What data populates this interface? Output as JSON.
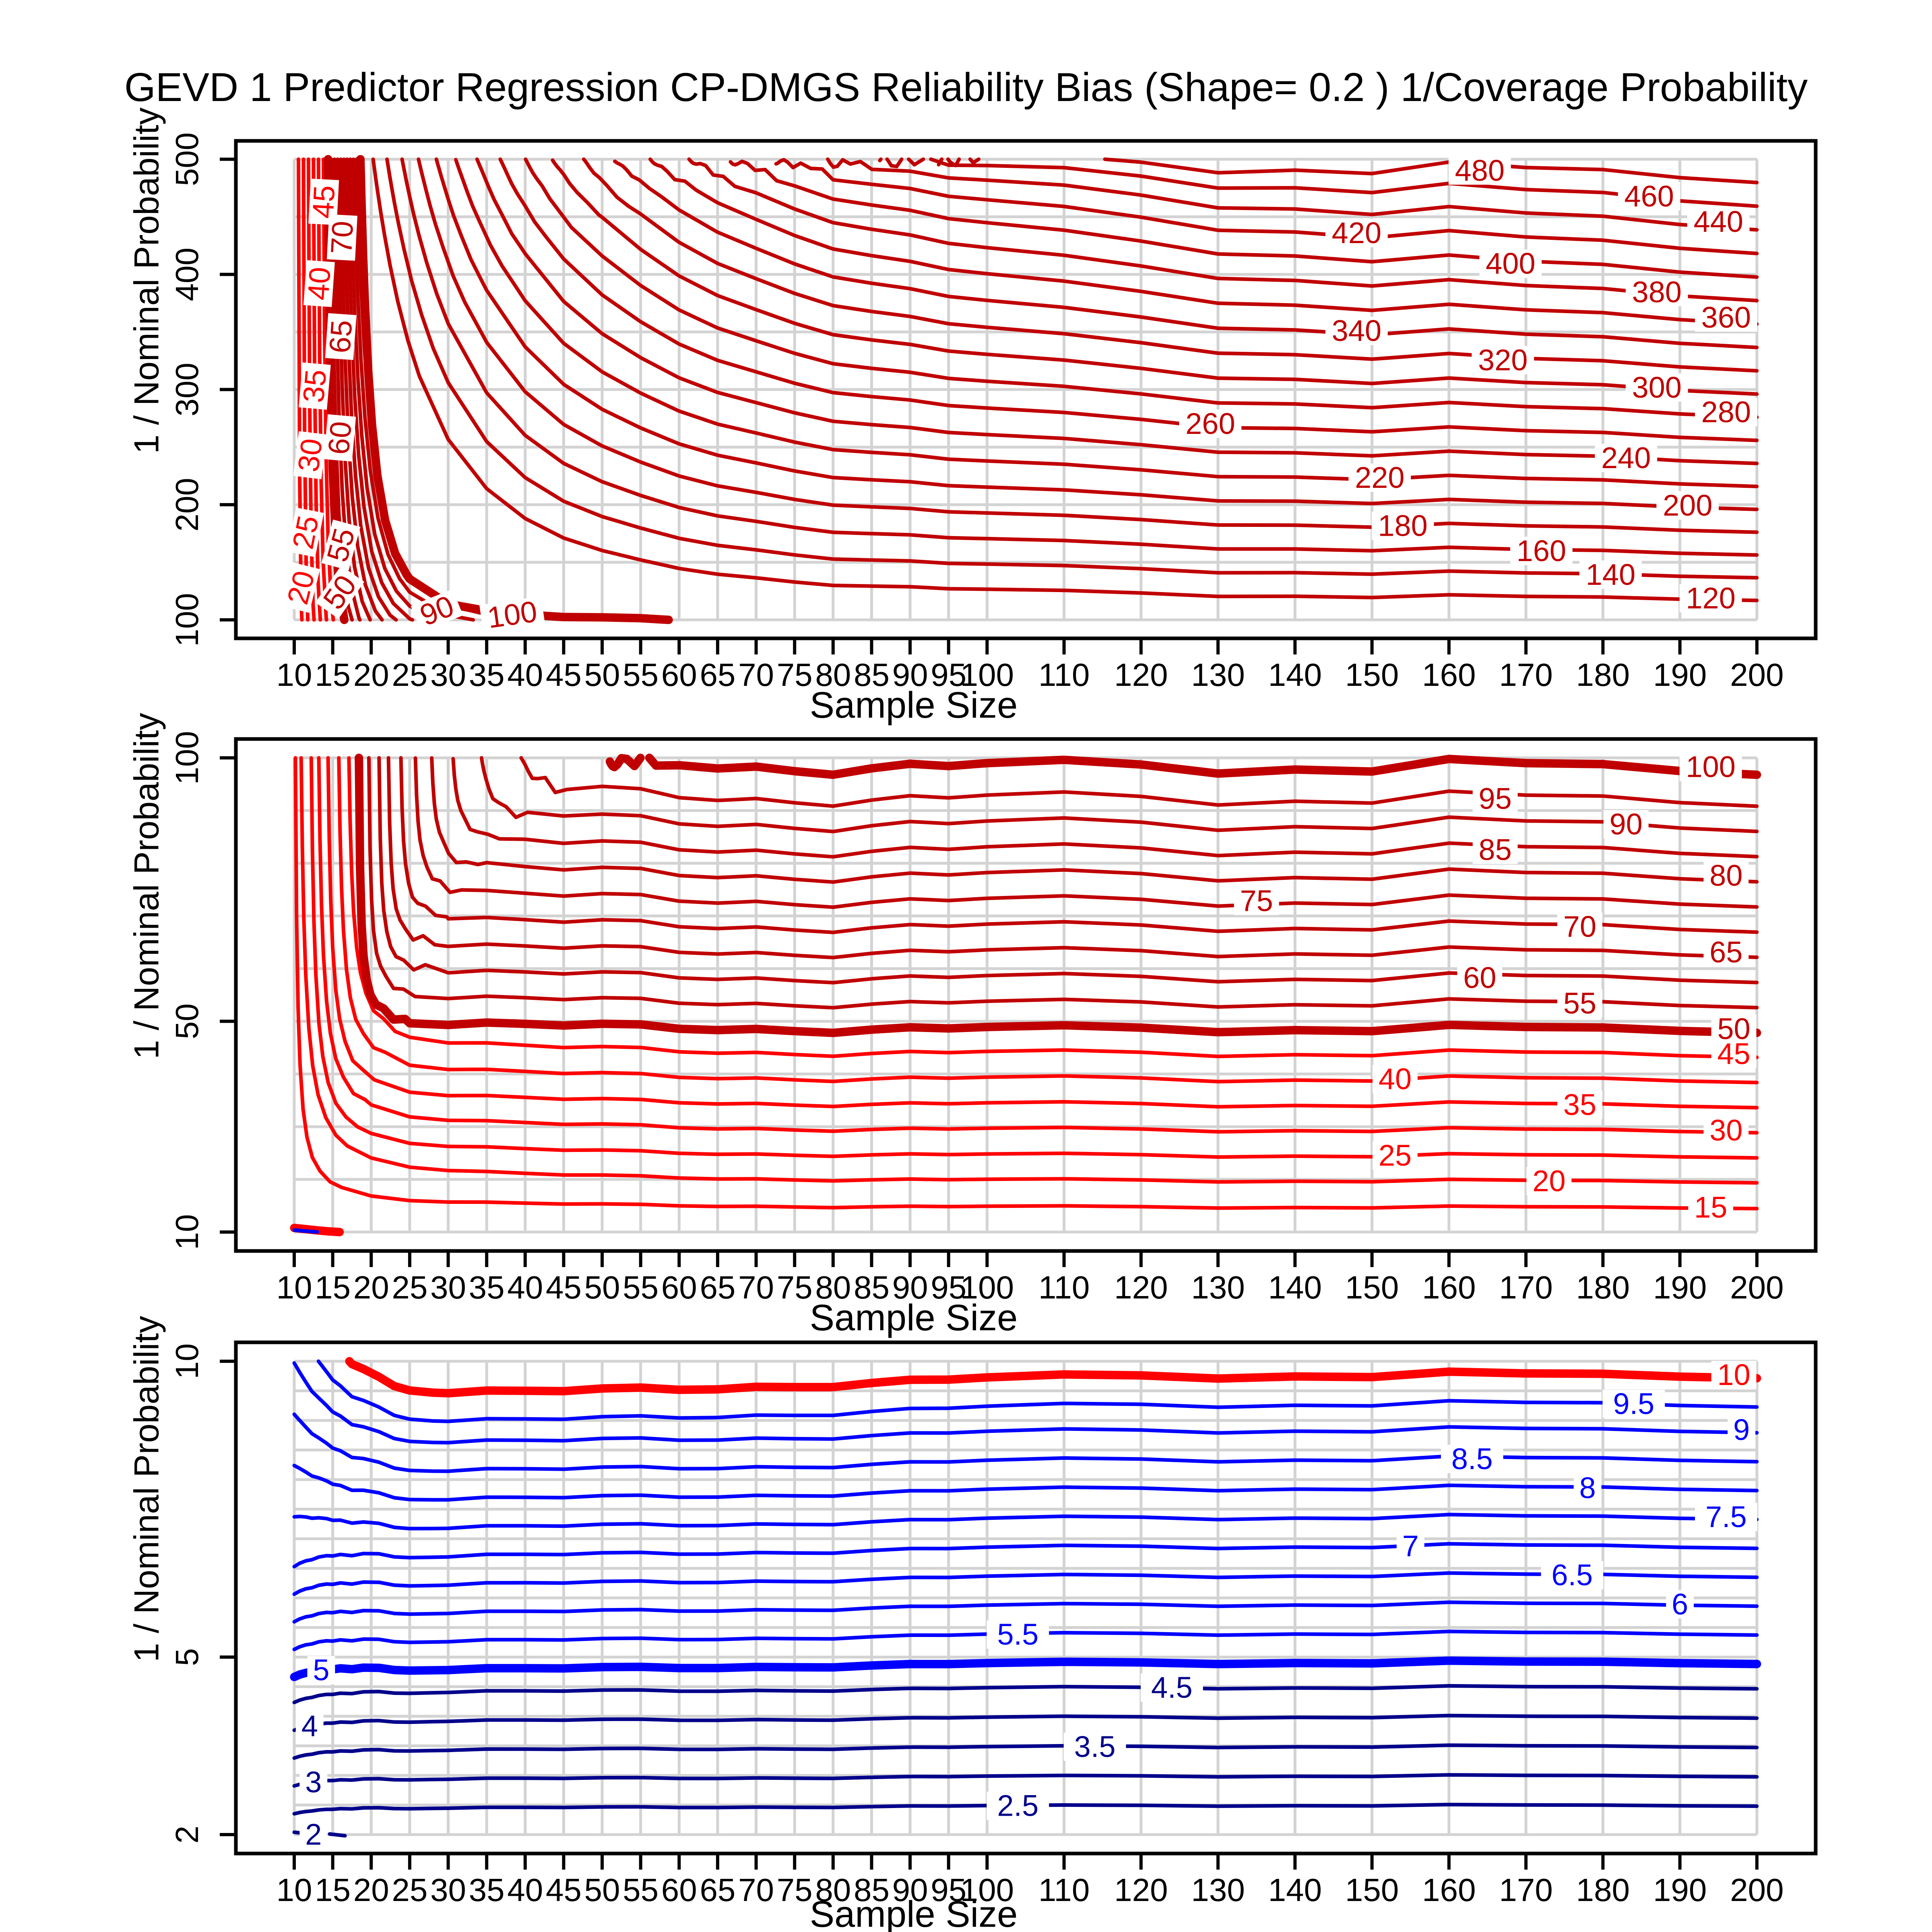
{
  "title": "GEVD 1 Predictor Regression CP-DMGS Reliability Bias (Shape= 0.2 ) 1/Coverage Probability",
  "axes": {
    "x_label": "Sample Size",
    "y_label": "1 / Nominal Probability"
  },
  "colors": {
    "bright_red": "#FF0000",
    "dark_red": "#C00000",
    "bright_blue": "#0000FF",
    "navy": "#00008B",
    "grid": "#D3D3D3",
    "axis": "#000000"
  },
  "chart_data": {
    "type": "contour",
    "x_axis": {
      "label": "Sample Size",
      "min": 10,
      "max": 200,
      "ticks": [
        10,
        15,
        20,
        25,
        30,
        35,
        40,
        45,
        50,
        55,
        60,
        65,
        70,
        75,
        80,
        85,
        90,
        95,
        100,
        110,
        120,
        130,
        140,
        150,
        160,
        170,
        180,
        190,
        200
      ]
    },
    "panels": [
      {
        "name": "top",
        "y_label": "1 / Nominal Probability",
        "y_min": 100,
        "y_max": 500,
        "y_ticks": [
          100,
          200,
          300,
          400,
          500
        ],
        "y_grid_step": 50,
        "family": "invsq",
        "levels": [
          {
            "v": 20,
            "col": "R",
            "th": false,
            "xt": 10.55,
            "r": 0.1,
            "labels": [
              {
                "y": 128,
                "rot": -76
              }
            ]
          },
          {
            "v": 25,
            "col": "R",
            "th": false,
            "xt": 11.2,
            "r": 0.1,
            "labels": [
              {
                "y": 176,
                "rot": -79
              }
            ]
          },
          {
            "v": 30,
            "col": "R",
            "th": false,
            "xt": 11.85,
            "r": 0.1,
            "labels": [
              {
                "y": 243,
                "rot": -83
              }
            ]
          },
          {
            "v": 35,
            "col": "R",
            "th": false,
            "xt": 12.5,
            "r": 0.1,
            "labels": [
              {
                "y": 303,
                "rot": -85
              }
            ]
          },
          {
            "v": 40,
            "col": "R",
            "th": false,
            "xt": 13.15,
            "r": 0.1,
            "labels": [
              {
                "y": 392,
                "rot": -86
              }
            ]
          },
          {
            "v": 45,
            "col": "R",
            "th": false,
            "xt": 13.8,
            "r": 0.1,
            "labels": [
              {
                "y": 463,
                "rot": -87
              }
            ]
          },
          {
            "v": 50,
            "col": "D",
            "th": true,
            "xt": 14.4,
            "r": 0.2,
            "labels": [
              {
                "y": 124,
                "rot": -55
              }
            ]
          },
          {
            "v": 55,
            "col": "D",
            "th": false,
            "xt": 14.81,
            "r": 0.23,
            "labels": [
              {
                "y": 165,
                "rot": -75
              }
            ]
          },
          {
            "v": 60,
            "col": "D",
            "th": false,
            "xt": 15.22,
            "r": 0.26,
            "labels": [
              {
                "y": 258,
                "rot": -85
              }
            ]
          },
          {
            "v": 65,
            "col": "D",
            "th": false,
            "xt": 15.63,
            "r": 0.3,
            "labels": [
              {
                "y": 346,
                "rot": -86
              }
            ]
          },
          {
            "v": 70,
            "col": "D",
            "th": false,
            "xt": 16.04,
            "r": 0.34,
            "labels": [
              {
                "y": 432,
                "rot": -87
              }
            ]
          },
          {
            "v": 75,
            "col": "D",
            "th": false,
            "xt": 16.45,
            "r": 0.38,
            "labels": []
          },
          {
            "v": 80,
            "col": "D",
            "th": false,
            "xt": 16.86,
            "r": 0.42,
            "labels": []
          },
          {
            "v": 85,
            "col": "D",
            "th": false,
            "xt": 17.27,
            "r": 0.46,
            "labels": []
          },
          {
            "v": 90,
            "col": "D",
            "th": false,
            "xt": 17.68,
            "r": 0.5,
            "labels": [
              {
                "y": 108,
                "rot": -22
              }
            ]
          },
          {
            "v": 95,
            "col": "D",
            "th": false,
            "xt": 18.09,
            "r": 0.54,
            "labels": []
          },
          {
            "v": 100,
            "col": "D",
            "th": true,
            "xt": 18.6,
            "r": 0.32,
            "bf": 0.982,
            "labels": [
              {
                "y": 104.5,
                "rot": -8
              }
            ]
          },
          {
            "v": 120,
            "col": "D",
            "th": false,
            "sweep": true,
            "labels": [
              {
                "x": 194
              }
            ]
          },
          {
            "v": 140,
            "col": "D",
            "th": false,
            "sweep": true,
            "labels": [
              {
                "x": 181
              }
            ]
          },
          {
            "v": 160,
            "col": "D",
            "th": false,
            "sweep": true,
            "labels": [
              {
                "x": 172
              }
            ]
          },
          {
            "v": 180,
            "col": "D",
            "th": false,
            "sweep": true,
            "labels": [
              {
                "x": 154
              }
            ]
          },
          {
            "v": 200,
            "col": "D",
            "th": false,
            "sweep": true,
            "labels": [
              {
                "x": 191
              }
            ]
          },
          {
            "v": 220,
            "col": "D",
            "th": false,
            "sweep": true,
            "labels": [
              {
                "x": 151
              }
            ]
          },
          {
            "v": 240,
            "col": "D",
            "th": false,
            "sweep": true,
            "labels": [
              {
                "x": 183
              }
            ]
          },
          {
            "v": 260,
            "col": "D",
            "th": false,
            "sweep": true,
            "labels": [
              {
                "x": 129
              }
            ]
          },
          {
            "v": 280,
            "col": "D",
            "th": false,
            "sweep": true,
            "labels": [
              {
                "x": 196
              }
            ]
          },
          {
            "v": 300,
            "col": "D",
            "th": false,
            "sweep": true,
            "labels": [
              {
                "x": 187
              }
            ]
          },
          {
            "v": 320,
            "col": "D",
            "th": false,
            "sweep": true,
            "labels": [
              {
                "x": 167
              }
            ]
          },
          {
            "v": 340,
            "col": "D",
            "th": false,
            "sweep": true,
            "labels": [
              {
                "x": 148
              }
            ]
          },
          {
            "v": 360,
            "col": "D",
            "th": false,
            "sweep": true,
            "labels": [
              {
                "x": 196
              }
            ]
          },
          {
            "v": 380,
            "col": "D",
            "th": false,
            "sweep": true,
            "labels": [
              {
                "x": 187
              }
            ]
          },
          {
            "v": 400,
            "col": "D",
            "th": false,
            "sweep": true,
            "labels": [
              {
                "x": 168
              }
            ]
          },
          {
            "v": 420,
            "col": "D",
            "th": false,
            "sweep": true,
            "labels": [
              {
                "x": 148
              }
            ]
          },
          {
            "v": 440,
            "col": "D",
            "th": false,
            "sweep": true,
            "labels": [
              {
                "x": 195
              }
            ]
          },
          {
            "v": 460,
            "col": "D",
            "th": false,
            "sweep": true,
            "labels": [
              {
                "x": 186
              }
            ]
          },
          {
            "v": 480,
            "col": "D",
            "th": false,
            "sweep": true,
            "labels": [
              {
                "x": 164
              }
            ]
          }
        ],
        "fragments": []
      },
      {
        "name": "middle",
        "y_label": "1 / Nominal Probability",
        "y_min": 10,
        "y_max": 100,
        "y_ticks": [
          10,
          50,
          100
        ],
        "y_grid_step": 10,
        "family": "hyp",
        "levels": [
          {
            "v": 15,
            "col": "R",
            "th": false,
            "a": 9.87,
            "c": 24,
            "labels": [
              {
                "x": 194
              }
            ]
          },
          {
            "v": 20,
            "col": "R",
            "th": false,
            "a": 10.33,
            "c": 46,
            "labels": [
              {
                "x": 173
              }
            ]
          },
          {
            "v": 25,
            "col": "R",
            "th": false,
            "a": 11.71,
            "c": 38,
            "labels": [
              {
                "x": 153
              }
            ]
          },
          {
            "v": 30,
            "col": "R",
            "th": false,
            "a": 12.66,
            "c": 38,
            "labels": [
              {
                "x": 196
              }
            ]
          },
          {
            "v": 35,
            "col": "R",
            "th": false,
            "a": 13.9,
            "c": 33,
            "labels": [
              {
                "x": 177
              }
            ]
          },
          {
            "v": 40,
            "col": "R",
            "th": false,
            "a": 15.27,
            "c": 32,
            "labels": [
              {
                "x": 153
              }
            ]
          },
          {
            "v": 45,
            "col": "R",
            "th": false,
            "a": 16.54,
            "c": 32,
            "labels": [
              {
                "x": 197
              }
            ]
          },
          {
            "v": 50,
            "col": "D",
            "th": true,
            "a": 18.18,
            "c": 11.4,
            "labels": [
              {
                "x": 197
              }
            ]
          },
          {
            "v": 55,
            "col": "D",
            "th": false,
            "a": 19.44,
            "c": 12,
            "labels": [
              {
                "x": 177
              }
            ]
          },
          {
            "v": 60,
            "col": "D",
            "th": false,
            "a": 20.76,
            "c": 11,
            "labels": [
              {
                "x": 164
              }
            ]
          },
          {
            "v": 65,
            "col": "D",
            "th": false,
            "a": 21.95,
            "c": 11,
            "labels": [
              {
                "x": 196
              }
            ]
          },
          {
            "v": 70,
            "col": "D",
            "th": false,
            "a": 23.5,
            "c": 11.5,
            "labels": [
              {
                "x": 177
              }
            ]
          },
          {
            "v": 75,
            "col": "D",
            "th": false,
            "a": 25.3,
            "c": 12,
            "labels": [
              {
                "x": 135
              }
            ]
          },
          {
            "v": 80,
            "col": "D",
            "th": false,
            "a": 27.3,
            "c": 12.5,
            "labels": [
              {
                "x": 196
              }
            ]
          },
          {
            "v": 85,
            "col": "D",
            "th": false,
            "a": 29.9,
            "c": 13,
            "labels": [
              {
                "x": 166
              }
            ]
          },
          {
            "v": 90,
            "col": "D",
            "th": false,
            "a": 33.2,
            "c": 14,
            "labels": [
              {
                "x": 183
              }
            ]
          },
          {
            "v": 95,
            "col": "D",
            "th": false,
            "a": 37.5,
            "c": 15,
            "labels": [
              {
                "x": 166
              }
            ]
          },
          {
            "v": 100,
            "col": "D",
            "th": true,
            "a": 44.0,
            "c": 12.6,
            "bf": 0.982,
            "labels": [
              {
                "x": 194
              }
            ]
          }
        ],
        "fragments": [
          {
            "col": "R",
            "th": true,
            "pts": [
              [
                10,
                10.78
              ],
              [
                11.5,
                10.55
              ],
              [
                13,
                10.32
              ],
              [
                14.5,
                10.12
              ],
              [
                15.9,
                10.0
              ]
            ]
          },
          {
            "col": "B",
            "th": false,
            "pts": [
              [
                10,
                10.38
              ],
              [
                11.5,
                10.18
              ],
              [
                13,
                10.02
              ]
            ]
          }
        ]
      },
      {
        "name": "bottom",
        "y_label": "1 / Nominal Probability",
        "y_min": 2,
        "y_max": 10,
        "y_ticks": [
          2,
          5,
          10
        ],
        "y_grid_step": 0.5,
        "family": "flat",
        "levels": [
          {
            "v": 10,
            "col": "R",
            "th": true,
            "labels": [
              {
                "x": 197
              }
            ]
          },
          {
            "v": 9.5,
            "col": "B",
            "th": false,
            "labels": [
              {
                "x": 184
              }
            ]
          },
          {
            "v": 9,
            "col": "B",
            "th": false,
            "labels": [
              {
                "x": 198
              }
            ]
          },
          {
            "v": 8.5,
            "col": "B",
            "th": false,
            "labels": [
              {
                "x": 163
              }
            ]
          },
          {
            "v": 8,
            "col": "B",
            "th": false,
            "labels": [
              {
                "x": 178
              }
            ]
          },
          {
            "v": 7.5,
            "col": "B",
            "th": false,
            "labels": [
              {
                "x": 196
              }
            ]
          },
          {
            "v": 7,
            "col": "B",
            "th": false,
            "labels": [
              {
                "x": 155
              }
            ]
          },
          {
            "v": 6.5,
            "col": "B",
            "th": false,
            "labels": [
              {
                "x": 176
              }
            ]
          },
          {
            "v": 6,
            "col": "B",
            "th": false,
            "labels": [
              {
                "x": 190
              }
            ]
          },
          {
            "v": 5.5,
            "col": "B",
            "th": false,
            "labels": [
              {
                "x": 104
              }
            ]
          },
          {
            "v": 5,
            "col": "B",
            "th": true,
            "labels": [
              {
                "x": 13.5
              }
            ]
          },
          {
            "v": 4.5,
            "col": "N",
            "th": false,
            "labels": [
              {
                "x": 124
              }
            ]
          },
          {
            "v": 4,
            "col": "N",
            "th": false,
            "labels": [
              {
                "x": 12
              }
            ]
          },
          {
            "v": 3.5,
            "col": "N",
            "th": false,
            "labels": [
              {
                "x": 114
              }
            ]
          },
          {
            "v": 3,
            "col": "N",
            "th": false,
            "labels": [
              {
                "x": 12.5
              }
            ]
          },
          {
            "v": 2.5,
            "col": "N",
            "th": false,
            "labels": [
              {
                "x": 104
              }
            ]
          }
        ],
        "fragments": [
          {
            "col": "N",
            "th": false,
            "pts": [
              [
                10,
                2.04
              ],
              [
                11.4,
                2.02
              ]
            ],
            "label": {
              "text": "2",
              "x": 12.5,
              "y": 2.0
            }
          },
          {
            "col": "N",
            "th": false,
            "pts": [
              [
                14.6,
                2.01
              ],
              [
                16.6,
                1.98
              ]
            ]
          }
        ]
      }
    ]
  }
}
